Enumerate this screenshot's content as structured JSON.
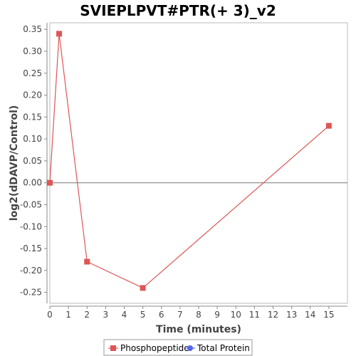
{
  "chart_data": {
    "type": "line",
    "title": "SVIEPLPVT#PTR(+ 3)_v2",
    "xlabel": "Time (minutes)",
    "ylabel": "log2(dDAVP/Control)",
    "xlim": [
      0,
      16
    ],
    "ylim": [
      -0.275,
      0.365
    ],
    "x_ticks": [
      0,
      1,
      2,
      3,
      4,
      5,
      6,
      7,
      8,
      9,
      10,
      11,
      12,
      13,
      14,
      15
    ],
    "y_ticks": [
      -0.25,
      -0.2,
      -0.15,
      -0.1,
      -0.05,
      0.0,
      0.05,
      0.1,
      0.15,
      0.2,
      0.25,
      0.3,
      0.35
    ],
    "y_tick_labels": [
      "-0.25",
      "-0.20",
      "-0.15",
      "-0.10",
      "-0.05",
      "0.00",
      "0.05",
      "0.10",
      "0.15",
      "0.20",
      "0.25",
      "0.30",
      "0.35"
    ],
    "grid": false,
    "legend_position": "bottom",
    "series": [
      {
        "name": "Phosphopeptide",
        "color": "#e05555",
        "marker": "square",
        "x": [
          0,
          0.5,
          2,
          5,
          15
        ],
        "y": [
          0.0,
          0.34,
          -0.18,
          -0.24,
          0.13
        ]
      },
      {
        "name": "Total Protein",
        "color": "#5566ee",
        "marker": "circle",
        "x": [],
        "y": []
      }
    ]
  }
}
